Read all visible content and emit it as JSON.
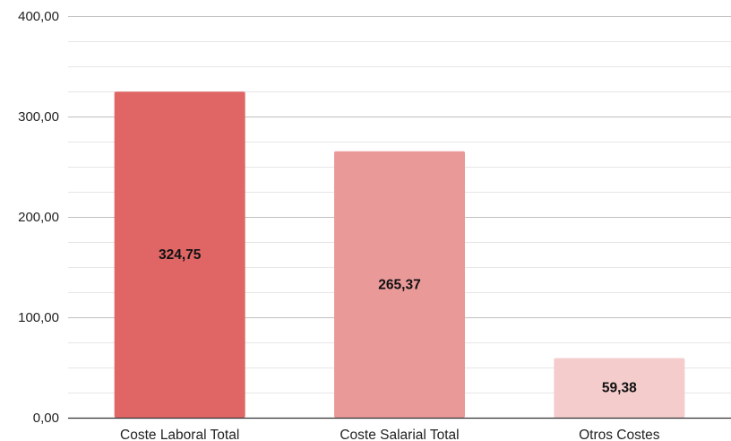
{
  "chart_data": {
    "type": "bar",
    "title": "",
    "xlabel": "",
    "ylabel": "",
    "categories": [
      "Coste Laboral Total",
      "Coste Salarial Total",
      "Otros Costes"
    ],
    "values": [
      324.75,
      265.37,
      59.38
    ],
    "value_labels": [
      "324,75",
      "265,37",
      "59,38"
    ],
    "bar_colors": [
      "#e06666",
      "#ea9999",
      "#f4cccc"
    ],
    "ylim": [
      0,
      400
    ],
    "y_ticks": [
      0,
      100,
      200,
      300,
      400
    ],
    "y_tick_labels": [
      "0,00",
      "100,00",
      "200,00",
      "300,00",
      "400,00"
    ],
    "minor_gridlines_per_major": 3,
    "grid": true,
    "legend": "none"
  }
}
